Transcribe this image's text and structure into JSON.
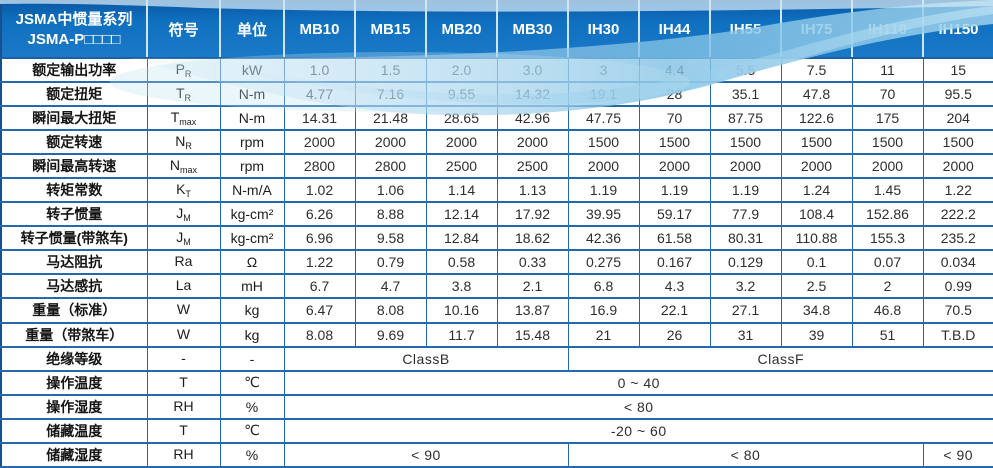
{
  "header": {
    "title_line1": "JSMA中惯量系列",
    "title_line2": "JSMA-P□□□□",
    "symbol_label": "符号",
    "unit_label": "单位",
    "models": [
      "MB10",
      "MB15",
      "MB20",
      "MB30",
      "IH30",
      "IH44",
      "IH55",
      "IH75",
      "IH110",
      "IH150"
    ]
  },
  "colors": {
    "header_blue": "#1070c0",
    "border_blue": "#2569ad",
    "wave_light_blue": "#a8d4ee"
  },
  "rows": [
    {
      "label": "额定输出功率",
      "symbol": "P",
      "symbol_sub": "R",
      "unit": "kW",
      "values": [
        "1.0",
        "1.5",
        "2.0",
        "3.0",
        "3",
        "4.4",
        "5.5",
        "7.5",
        "11",
        "15"
      ]
    },
    {
      "label": "额定扭矩",
      "symbol": "T",
      "symbol_sub": "R",
      "unit": "N-m",
      "values": [
        "4.77",
        "7.16",
        "9.55",
        "14.32",
        "19.1",
        "28",
        "35.1",
        "47.8",
        "70",
        "95.5"
      ]
    },
    {
      "label": "瞬间最大扭矩",
      "symbol": "T",
      "symbol_sub": "max",
      "unit": "N-m",
      "values": [
        "14.31",
        "21.48",
        "28.65",
        "42.96",
        "47.75",
        "70",
        "87.75",
        "122.6",
        "175",
        "204"
      ]
    },
    {
      "label": "额定转速",
      "symbol": "N",
      "symbol_sub": "R",
      "unit": "rpm",
      "values": [
        "2000",
        "2000",
        "2000",
        "2000",
        "1500",
        "1500",
        "1500",
        "1500",
        "1500",
        "1500"
      ]
    },
    {
      "label": "瞬间最高转速",
      "symbol": "N",
      "symbol_sub": "max",
      "unit": "rpm",
      "values": [
        "2800",
        "2800",
        "2500",
        "2500",
        "2000",
        "2000",
        "2000",
        "2000",
        "2000",
        "2000"
      ]
    },
    {
      "label": "转矩常数",
      "symbol": "K",
      "symbol_sub": "T",
      "unit": "N-m/A",
      "values": [
        "1.02",
        "1.06",
        "1.14",
        "1.13",
        "1.19",
        "1.19",
        "1.19",
        "1.24",
        "1.45",
        "1.22"
      ]
    },
    {
      "label": "转子惯量",
      "symbol": "J",
      "symbol_sub": "M",
      "unit": "kg-cm²",
      "values": [
        "6.26",
        "8.88",
        "12.14",
        "17.92",
        "39.95",
        "59.17",
        "77.9",
        "108.4",
        "152.86",
        "222.2"
      ]
    },
    {
      "label": "转子惯量(带煞车)",
      "symbol": "J",
      "symbol_sub": "M",
      "unit": "kg-cm²",
      "values": [
        "6.96",
        "9.58",
        "12.84",
        "18.62",
        "42.36",
        "61.58",
        "80.31",
        "110.88",
        "155.3",
        "235.2"
      ]
    },
    {
      "label": "马达阻抗",
      "symbol": "Ra",
      "symbol_sub": "",
      "unit": "Ω",
      "values": [
        "1.22",
        "0.79",
        "0.58",
        "0.33",
        "0.275",
        "0.167",
        "0.129",
        "0.1",
        "0.07",
        "0.034"
      ]
    },
    {
      "label": "马达感抗",
      "symbol": "La",
      "symbol_sub": "",
      "unit": "mH",
      "values": [
        "6.7",
        "4.7",
        "3.8",
        "2.1",
        "6.8",
        "4.3",
        "3.2",
        "2.5",
        "2",
        "0.99"
      ]
    },
    {
      "label": "重量（标准）",
      "symbol": "W",
      "symbol_sub": "",
      "unit": "kg",
      "values": [
        "6.47",
        "8.08",
        "10.16",
        "13.87",
        "16.9",
        "22.1",
        "27.1",
        "34.8",
        "46.8",
        "70.5"
      ]
    },
    {
      "label": "重量（带煞车）",
      "symbol": "W",
      "symbol_sub": "",
      "unit": "kg",
      "values": [
        "8.08",
        "9.69",
        "11.7",
        "15.48",
        "21",
        "26",
        "31",
        "39",
        "51",
        "T.B.D"
      ]
    },
    {
      "label": "绝缘等级",
      "symbol": "-",
      "symbol_sub": "",
      "unit": "-",
      "spans": [
        {
          "text": "ClassB",
          "cols": 4
        },
        {
          "text": "ClassF",
          "cols": 6
        }
      ]
    },
    {
      "label": "操作温度",
      "symbol": "T",
      "symbol_sub": "",
      "unit": "℃",
      "spans": [
        {
          "text": "0 ~ 40",
          "cols": 10
        }
      ]
    },
    {
      "label": "操作湿度",
      "symbol": "RH",
      "symbol_sub": "",
      "unit": "%",
      "spans": [
        {
          "text": "< 80",
          "cols": 10
        }
      ]
    },
    {
      "label": "储藏温度",
      "symbol": "T",
      "symbol_sub": "",
      "unit": "℃",
      "spans": [
        {
          "text": "-20 ~ 60",
          "cols": 10
        }
      ]
    },
    {
      "label": "储藏湿度",
      "symbol": "RH",
      "symbol_sub": "",
      "unit": "%",
      "spans": [
        {
          "text": "< 90",
          "cols": 4
        },
        {
          "text": "< 80",
          "cols": 5
        },
        {
          "text": "< 90",
          "cols": 1
        }
      ]
    }
  ]
}
